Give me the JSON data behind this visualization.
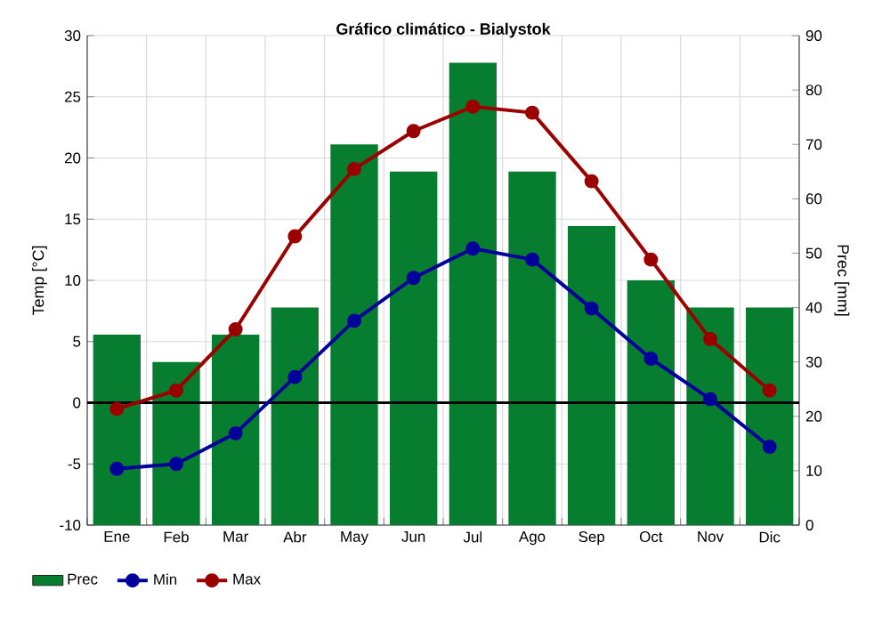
{
  "chart_data": {
    "type": "bar",
    "title": "Gráfico climático - Bialystok",
    "ylabel": "Temp [°C]",
    "y2label": "Prec [mm]",
    "categories": [
      "Ene",
      "Feb",
      "Mar",
      "Abr",
      "May",
      "Jun",
      "Jul",
      "Ago",
      "Sep",
      "Oct",
      "Nov",
      "Dic"
    ],
    "series": [
      {
        "name": "Prec",
        "axis": "y2",
        "color": "#067d2f",
        "values": [
          35,
          30,
          35,
          40,
          70,
          65,
          85,
          65,
          55,
          45,
          40,
          40
        ]
      },
      {
        "name": "Min",
        "type": "line",
        "color": "#00009a",
        "values": [
          -5.4,
          -5.0,
          -2.5,
          2.1,
          6.7,
          10.2,
          12.6,
          11.7,
          7.7,
          3.6,
          0.3,
          -3.6
        ]
      },
      {
        "name": "Max",
        "type": "line",
        "color": "#9b0000",
        "values": [
          -0.5,
          1.0,
          6.0,
          13.6,
          19.1,
          22.2,
          24.2,
          23.7,
          18.1,
          11.7,
          5.2,
          1.0
        ]
      }
    ],
    "ylim": [
      -10,
      30
    ],
    "yticks": [
      -10,
      -5,
      0,
      5,
      10,
      15,
      20,
      25,
      30
    ],
    "y2lim": [
      0,
      90
    ],
    "y2ticks": [
      0,
      10,
      20,
      30,
      40,
      50,
      60,
      70,
      80,
      90
    ],
    "ref_lines": [
      {
        "axis": "y",
        "value": 0,
        "color": "#000000"
      }
    ],
    "grid": true,
    "legend": "bottom left",
    "marker": "circle"
  }
}
